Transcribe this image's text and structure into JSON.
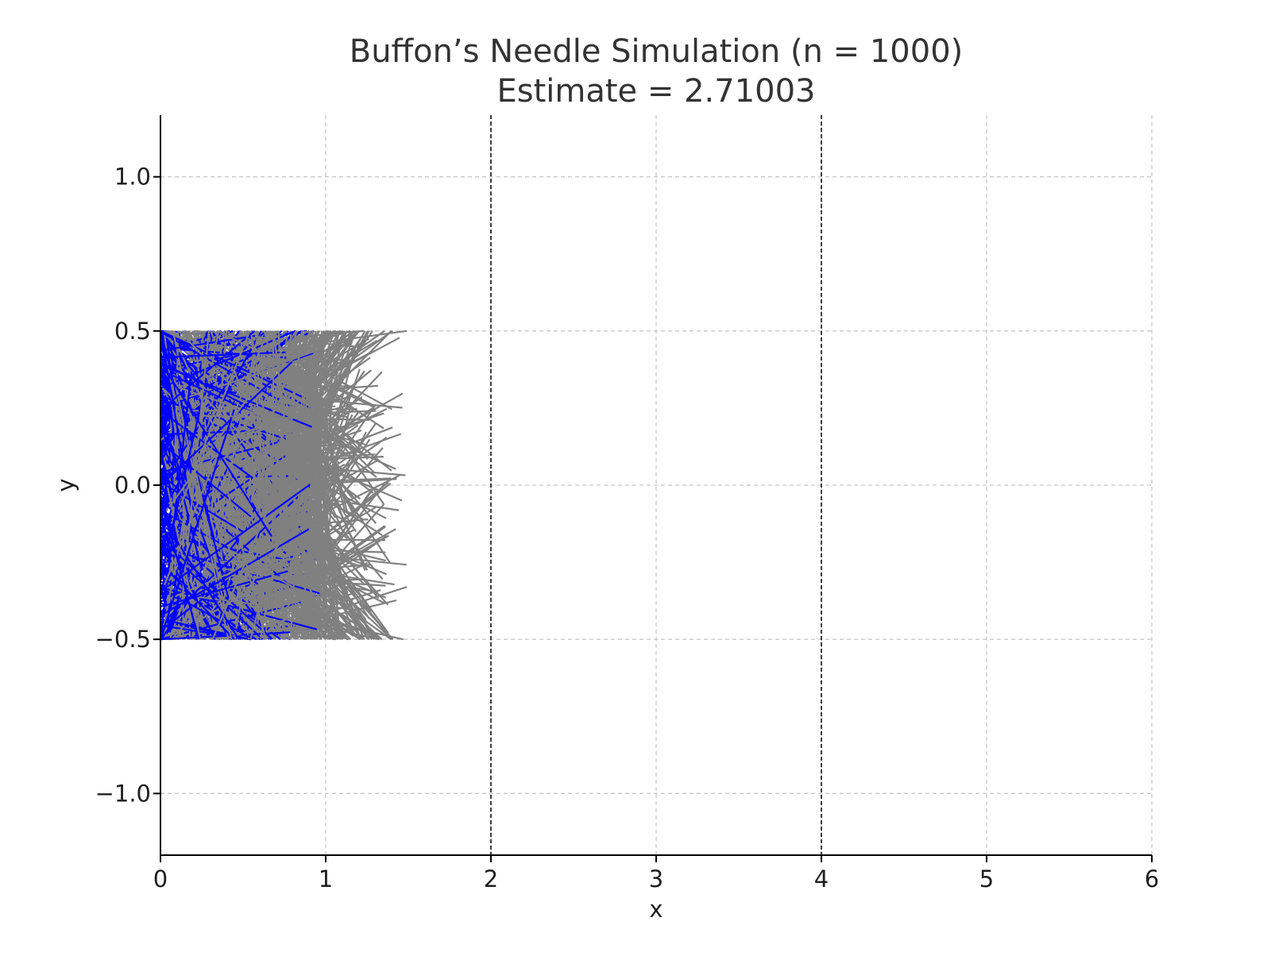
{
  "chart_data": {
    "type": "line",
    "title": "Buffon’s Needle Simulation (n = 1000)",
    "subtitle": "Estimate = 2.71003",
    "xlabel": "x",
    "ylabel": "y",
    "xlim": [
      0,
      6
    ],
    "ylim": [
      -1.2,
      1.2
    ],
    "x_ticks": [
      "0",
      "1",
      "2",
      "3",
      "4",
      "5",
      "6"
    ],
    "y_ticks": [
      "1.0",
      "0.5",
      "0.0",
      "−0.5",
      "−1.0"
    ],
    "y_tick_values": [
      1.0,
      0.5,
      0.0,
      -0.5,
      -1.0
    ],
    "grid": true,
    "reference_lines_x": [
      2,
      4
    ],
    "n_needles": 1000,
    "needle_length": 1.0,
    "needle_center_x_range": [
      0,
      1
    ],
    "needle_center_y_range": [
      -0.5,
      0.5
    ],
    "colors": {
      "crossing": "#0000ff",
      "non_crossing": "#808080",
      "reference_line": "#000000",
      "grid": "#c8c8c8",
      "axis": "#000000"
    }
  }
}
